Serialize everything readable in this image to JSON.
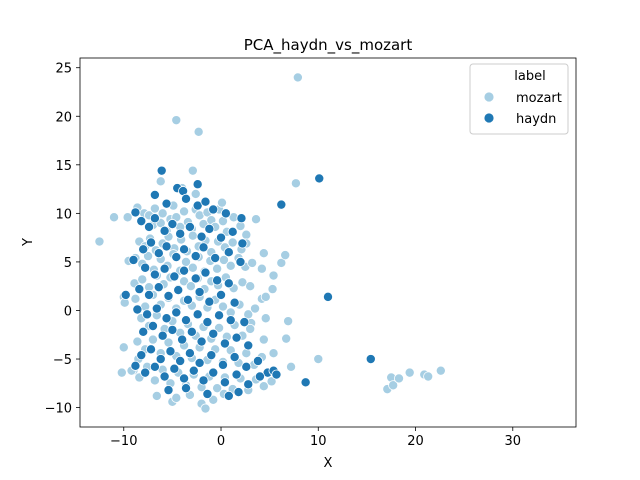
{
  "chart_data": {
    "type": "scatter",
    "title": "PCA_haydn_vs_mozart",
    "xlabel": "X",
    "ylabel": "Y",
    "xlim": [
      -14.5,
      36.5
    ],
    "ylim": [
      -12,
      26
    ],
    "xticks": [
      -10,
      0,
      10,
      20,
      30
    ],
    "yticks": [
      -10,
      -5,
      0,
      5,
      10,
      15,
      20,
      25
    ],
    "grid": false,
    "legend": {
      "title": "label",
      "placement": "top-right",
      "entries": [
        {
          "name": "mozart",
          "color": "#a6cee3"
        },
        {
          "name": "haydn",
          "color": "#1f78b4"
        }
      ]
    },
    "series": [
      {
        "name": "mozart",
        "color": "#a6cee3",
        "points": [
          [
            -12.5,
            7.1
          ],
          [
            -11,
            9.6
          ],
          [
            -9.6,
            9.6
          ],
          [
            -9.5,
            5.1
          ],
          [
            -10,
            1.4
          ],
          [
            -10,
            -3.8
          ],
          [
            -10.2,
            -6.4
          ],
          [
            -9,
            -6.2
          ],
          [
            -8.5,
            -5.0
          ],
          [
            -8.6,
            10.6
          ],
          [
            -7.9,
            10.0
          ],
          [
            -7.4,
            9.8
          ],
          [
            -7.0,
            8.8
          ],
          [
            -6.8,
            10.5
          ],
          [
            -6.5,
            9.5
          ],
          [
            -6.2,
            9.0
          ],
          [
            -6.0,
            10.0
          ],
          [
            -5.6,
            8.2
          ],
          [
            -5.2,
            9.4
          ],
          [
            -4.9,
            10.8
          ],
          [
            -4.6,
            9.6
          ],
          [
            -4.2,
            8.6
          ],
          [
            -3.8,
            10.2
          ],
          [
            -3.4,
            9.1
          ],
          [
            -3.0,
            8.4
          ],
          [
            -2.6,
            10.4
          ],
          [
            -2.2,
            9.8
          ],
          [
            -1.8,
            8.9
          ],
          [
            -1.4,
            10.1
          ],
          [
            -1.0,
            9.3
          ],
          [
            -0.6,
            8.6
          ],
          [
            -0.2,
            10.4
          ],
          [
            0.2,
            9.2
          ],
          [
            0.6,
            8.1
          ],
          [
            1.3,
            9.6
          ],
          [
            2.0,
            8.7
          ],
          [
            2.6,
            7.8
          ],
          [
            3.6,
            9.4
          ],
          [
            -8.4,
            7.1
          ],
          [
            -7.8,
            6.6
          ],
          [
            -7.3,
            7.4
          ],
          [
            -6.7,
            6.2
          ],
          [
            -6.0,
            6.9
          ],
          [
            -5.4,
            7.6
          ],
          [
            -4.8,
            6.4
          ],
          [
            -4.1,
            7.3
          ],
          [
            -3.5,
            6.1
          ],
          [
            -2.9,
            7.7
          ],
          [
            -2.3,
            6.6
          ],
          [
            -1.6,
            7.2
          ],
          [
            -1.0,
            6.0
          ],
          [
            -0.3,
            7.1
          ],
          [
            0.4,
            6.5
          ],
          [
            1.2,
            7.0
          ],
          [
            2.1,
            6.3
          ],
          [
            2.6,
            6.9
          ],
          [
            -8.8,
            5.4
          ],
          [
            -8.1,
            4.8
          ],
          [
            -7.5,
            5.6
          ],
          [
            -6.9,
            4.2
          ],
          [
            -6.2,
            5.3
          ],
          [
            -5.5,
            4.6
          ],
          [
            -4.9,
            5.8
          ],
          [
            -4.2,
            4.1
          ],
          [
            -3.6,
            5.0
          ],
          [
            -2.9,
            4.4
          ],
          [
            -2.3,
            5.5
          ],
          [
            -1.7,
            4.0
          ],
          [
            -1.1,
            5.1
          ],
          [
            -0.4,
            4.3
          ],
          [
            0.3,
            5.2
          ],
          [
            1.0,
            4.6
          ],
          [
            1.8,
            5.4
          ],
          [
            2.5,
            4.5
          ],
          [
            3.2,
            4.9
          ],
          [
            4.2,
            4.3
          ],
          [
            4.4,
            5.9
          ],
          [
            5.4,
            3.6
          ],
          [
            6.2,
            4.9
          ],
          [
            6.6,
            5.7
          ],
          [
            -8.9,
            2.8
          ],
          [
            -8.1,
            3.2
          ],
          [
            -7.4,
            2.4
          ],
          [
            -6.6,
            3.6
          ],
          [
            -5.9,
            2.7
          ],
          [
            -5.2,
            3.4
          ],
          [
            -4.4,
            2.2
          ],
          [
            -3.8,
            3.0
          ],
          [
            -3.1,
            2.5
          ],
          [
            -2.4,
            3.3
          ],
          [
            -1.7,
            2.2
          ],
          [
            -1.0,
            3.0
          ],
          [
            -0.3,
            2.6
          ],
          [
            0.5,
            3.4
          ],
          [
            1.3,
            2.3
          ],
          [
            2.2,
            2.9
          ],
          [
            3.0,
            2.5
          ],
          [
            4.2,
            1.2
          ],
          [
            4.6,
            1.4
          ],
          [
            5.3,
            2.2
          ],
          [
            -9.9,
            0.8
          ],
          [
            -8.8,
            1.2
          ],
          [
            -7.8,
            0.4
          ],
          [
            -7.0,
            1.6
          ],
          [
            -6.2,
            0.6
          ],
          [
            -5.4,
            1.3
          ],
          [
            -4.6,
            0.2
          ],
          [
            -3.8,
            1.0
          ],
          [
            -3.0,
            0.5
          ],
          [
            -2.2,
            1.4
          ],
          [
            -1.4,
            0.3
          ],
          [
            -0.6,
            1.1
          ],
          [
            0.2,
            0.4
          ],
          [
            1.0,
            -0.2
          ],
          [
            1.9,
            0.6
          ],
          [
            2.8,
            -0.4
          ],
          [
            3.5,
            0.2
          ],
          [
            4.6,
            -0.8
          ],
          [
            6.9,
            -1.1
          ],
          [
            3.1,
            -1.3
          ],
          [
            -8.2,
            -0.8
          ],
          [
            -7.4,
            -1.6
          ],
          [
            -6.6,
            -0.5
          ],
          [
            -5.8,
            -1.9
          ],
          [
            -5.0,
            -1.1
          ],
          [
            -4.2,
            -2.3
          ],
          [
            -3.4,
            -1.4
          ],
          [
            -2.6,
            -2.6
          ],
          [
            -1.8,
            -1.7
          ],
          [
            -1.0,
            -2.9
          ],
          [
            -0.2,
            -1.8
          ],
          [
            0.6,
            -2.7
          ],
          [
            1.4,
            -1.5
          ],
          [
            2.2,
            -2.6
          ],
          [
            3.0,
            -1.9
          ],
          [
            4.4,
            -3.0
          ],
          [
            -8.6,
            -3.2
          ],
          [
            -7.8,
            -4.0
          ],
          [
            -7.0,
            -3.0
          ],
          [
            -6.2,
            -4.4
          ],
          [
            -5.4,
            -3.3
          ],
          [
            -4.6,
            -4.7
          ],
          [
            -3.8,
            -3.6
          ],
          [
            -3.0,
            -4.9
          ],
          [
            -2.2,
            -3.8
          ],
          [
            -1.4,
            -5.1
          ],
          [
            -0.6,
            -4.0
          ],
          [
            0.2,
            -5.3
          ],
          [
            1.0,
            -4.1
          ],
          [
            1.8,
            -5.4
          ],
          [
            2.6,
            -4.4
          ],
          [
            3.4,
            -5.6
          ],
          [
            4.2,
            -4.8
          ],
          [
            5.4,
            -4.4
          ],
          [
            6.7,
            -2.9
          ],
          [
            7.2,
            -5.8
          ],
          [
            10.0,
            -5.0
          ],
          [
            -9.2,
            -6.2
          ],
          [
            -8.4,
            -6.9
          ],
          [
            -7.6,
            -5.8
          ],
          [
            -6.8,
            -7.2
          ],
          [
            -6.0,
            -6.1
          ],
          [
            -5.2,
            -7.5
          ],
          [
            -4.4,
            -6.4
          ],
          [
            -3.6,
            -7.7
          ],
          [
            -2.8,
            -6.6
          ],
          [
            -2.0,
            -7.9
          ],
          [
            -1.2,
            -6.8
          ],
          [
            -0.4,
            -8.0
          ],
          [
            0.4,
            -6.9
          ],
          [
            1.2,
            -8.1
          ],
          [
            2.0,
            -7.0
          ],
          [
            2.8,
            -8.2
          ],
          [
            3.6,
            -7.1
          ],
          [
            4.4,
            -7.8
          ],
          [
            5.2,
            -7.3
          ],
          [
            -6.6,
            -8.8
          ],
          [
            -5.0,
            -9.4
          ],
          [
            -4.6,
            -9.0
          ],
          [
            -3.2,
            -8.7
          ],
          [
            -2.0,
            -9.6
          ],
          [
            -1.6,
            -10.1
          ],
          [
            -0.8,
            -9.2
          ],
          [
            0.3,
            -8.6
          ],
          [
            -4.6,
            19.6
          ],
          [
            -2.3,
            18.4
          ],
          [
            7.9,
            24.0
          ],
          [
            7.7,
            13.1
          ],
          [
            -2.9,
            14.4
          ],
          [
            17.1,
            -8.1
          ],
          [
            17.5,
            -6.9
          ],
          [
            17.7,
            -7.7
          ],
          [
            18.3,
            -7.0
          ],
          [
            19.4,
            -6.4
          ],
          [
            20.9,
            -6.6
          ],
          [
            21.3,
            -6.8
          ],
          [
            22.6,
            -6.2
          ],
          [
            -6.2,
            13.3
          ],
          [
            -4.0,
            12.6
          ],
          [
            -2.6,
            12.0
          ],
          [
            0.1,
            11.1
          ]
        ]
      },
      {
        "name": "haydn",
        "color": "#1f78b4",
        "points": [
          [
            -6.1,
            14.4
          ],
          [
            -4.5,
            12.6
          ],
          [
            -3.9,
            12.3
          ],
          [
            -6.8,
            11.9
          ],
          [
            -8.8,
            10.1
          ],
          [
            -5.6,
            11.0
          ],
          [
            -3.6,
            11.5
          ],
          [
            -2.4,
            10.8
          ],
          [
            -1.6,
            11.2
          ],
          [
            -0.8,
            10.4
          ],
          [
            0.5,
            10.0
          ],
          [
            2.1,
            9.5
          ],
          [
            6.2,
            10.9
          ],
          [
            10.1,
            13.6
          ],
          [
            -8.2,
            9.2
          ],
          [
            -7.4,
            8.6
          ],
          [
            -6.8,
            9.5
          ],
          [
            -5.8,
            8.2
          ],
          [
            -5.0,
            8.9
          ],
          [
            -4.2,
            7.9
          ],
          [
            -3.2,
            8.6
          ],
          [
            -2.0,
            7.6
          ],
          [
            -1.2,
            8.4
          ],
          [
            0.0,
            7.5
          ],
          [
            1.2,
            8.1
          ],
          [
            2.2,
            6.9
          ],
          [
            -8.0,
            6.3
          ],
          [
            -7.2,
            7.0
          ],
          [
            -6.4,
            5.9
          ],
          [
            -5.6,
            6.6
          ],
          [
            -4.6,
            5.5
          ],
          [
            -3.8,
            6.3
          ],
          [
            -2.6,
            5.6
          ],
          [
            -1.8,
            6.5
          ],
          [
            -0.6,
            5.4
          ],
          [
            0.8,
            6.0
          ],
          [
            2.0,
            5.0
          ],
          [
            -9.0,
            5.2
          ],
          [
            -7.8,
            4.4
          ],
          [
            -6.8,
            3.7
          ],
          [
            -5.8,
            4.3
          ],
          [
            -4.8,
            3.5
          ],
          [
            -3.8,
            4.1
          ],
          [
            -2.6,
            3.3
          ],
          [
            -1.6,
            3.9
          ],
          [
            -0.4,
            3.1
          ],
          [
            0.8,
            2.8
          ],
          [
            -8.4,
            2.2
          ],
          [
            -7.4,
            1.6
          ],
          [
            -6.4,
            2.4
          ],
          [
            -5.4,
            1.5
          ],
          [
            -4.4,
            2.1
          ],
          [
            -3.4,
            1.1
          ],
          [
            -2.2,
            1.9
          ],
          [
            -1.2,
            0.9
          ],
          [
            0.0,
            1.6
          ],
          [
            1.4,
            0.8
          ],
          [
            11.0,
            1.4
          ],
          [
            -9.8,
            1.6
          ],
          [
            -8.6,
            0.1
          ],
          [
            -7.6,
            -0.4
          ],
          [
            -6.6,
            0.2
          ],
          [
            -5.6,
            -0.8
          ],
          [
            -4.6,
            -0.2
          ],
          [
            -3.6,
            -1.0
          ],
          [
            -2.4,
            -0.4
          ],
          [
            -1.4,
            -1.2
          ],
          [
            -0.2,
            -0.5
          ],
          [
            1.0,
            -1.0
          ],
          [
            2.4,
            -1.2
          ],
          [
            -8.0,
            -2.2
          ],
          [
            -7.0,
            -1.6
          ],
          [
            -6.0,
            -2.6
          ],
          [
            -5.0,
            -2.0
          ],
          [
            -4.0,
            -3.0
          ],
          [
            -3.0,
            -2.2
          ],
          [
            -2.0,
            -3.2
          ],
          [
            -0.8,
            -2.4
          ],
          [
            0.4,
            -3.4
          ],
          [
            1.6,
            -2.8
          ],
          [
            2.8,
            -3.6
          ],
          [
            -8.2,
            -4.6
          ],
          [
            -7.2,
            -4.0
          ],
          [
            -6.2,
            -5.0
          ],
          [
            -5.2,
            -4.2
          ],
          [
            -4.2,
            -5.2
          ],
          [
            -3.2,
            -4.4
          ],
          [
            -2.2,
            -5.4
          ],
          [
            -1.0,
            -4.6
          ],
          [
            0.2,
            -5.6
          ],
          [
            1.4,
            -4.8
          ],
          [
            2.6,
            -5.8
          ],
          [
            3.8,
            -5.2
          ],
          [
            4.8,
            -6.4
          ],
          [
            5.4,
            -6.2
          ],
          [
            5.7,
            -6.6
          ],
          [
            -8.8,
            -5.7
          ],
          [
            -7.8,
            -6.4
          ],
          [
            -6.8,
            -5.8
          ],
          [
            -5.8,
            -6.8
          ],
          [
            -4.8,
            -6.0
          ],
          [
            -3.8,
            -7.0
          ],
          [
            -2.8,
            -6.2
          ],
          [
            -1.8,
            -7.2
          ],
          [
            -0.8,
            -6.4
          ],
          [
            0.4,
            -7.4
          ],
          [
            1.6,
            -6.6
          ],
          [
            2.8,
            -7.6
          ],
          [
            4.0,
            -6.8
          ],
          [
            -5.4,
            -8.2
          ],
          [
            -3.6,
            -8.0
          ],
          [
            -1.4,
            -8.6
          ],
          [
            0.8,
            -8.8
          ],
          [
            1.8,
            -8.4
          ],
          [
            8.7,
            -7.4
          ],
          [
            15.4,
            -5.0
          ],
          [
            -2.4,
            13.0
          ]
        ]
      }
    ]
  }
}
